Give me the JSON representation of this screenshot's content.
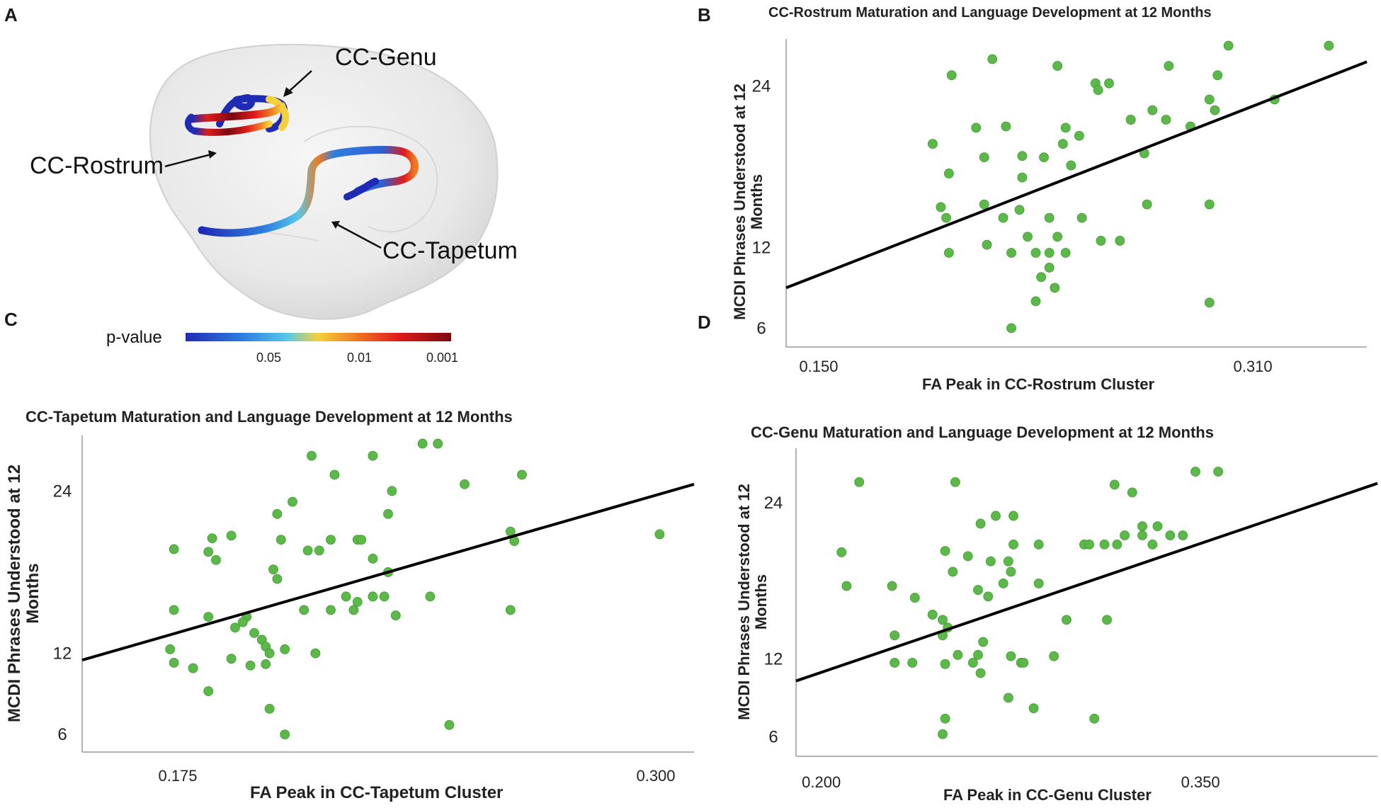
{
  "panel_labels": {
    "a": "A",
    "b": "B",
    "c": "C",
    "d": "D"
  },
  "brain_panel": {
    "labels": {
      "genu": "CC-Genu",
      "rostrum": "CC-Rostrum",
      "tapetum": "CC-Tapetum"
    },
    "colorbar": {
      "title": "p-value",
      "ticks": [
        "0.05",
        "0.01",
        "0.001"
      ],
      "colors": [
        "#1f2bb5",
        "#2f7fe0",
        "#56c7e8",
        "#f5d13a",
        "#f07a22",
        "#e01b1b",
        "#7a0a10"
      ]
    }
  },
  "colors": {
    "point": "#5db84a",
    "point_edge": "#3f9a32",
    "fit_line": "#000000",
    "axis": "#9a9a9a"
  },
  "chart_data": [
    {
      "id": "rostrum",
      "type": "scatter",
      "title": "CC-Rostrum Maturation and Language Development at 12 Months",
      "xlabel": "FA Peak in CC-Rostrum Cluster",
      "ylabel_lines": [
        "MCDI Phrases Understood at 12",
        "Months"
      ],
      "xlim": [
        0.138,
        0.352
      ],
      "ylim": [
        4.6,
        27.5
      ],
      "xticks": [
        0.15,
        0.31
      ],
      "xtick_labels": [
        "0.150",
        "0.310"
      ],
      "yticks": [
        6,
        12,
        24
      ],
      "fit": {
        "x": [
          0.138,
          0.352
        ],
        "y": [
          9.0,
          25.8
        ]
      },
      "points": [
        [
          0.214,
          26.0
        ],
        [
          0.301,
          27.0
        ],
        [
          0.338,
          27.0
        ],
        [
          0.238,
          25.5
        ],
        [
          0.279,
          25.5
        ],
        [
          0.199,
          24.8
        ],
        [
          0.297,
          24.8
        ],
        [
          0.252,
          24.2
        ],
        [
          0.257,
          24.2
        ],
        [
          0.253,
          23.7
        ],
        [
          0.294,
          23.0
        ],
        [
          0.318,
          23.0
        ],
        [
          0.273,
          22.2
        ],
        [
          0.296,
          22.2
        ],
        [
          0.265,
          21.5
        ],
        [
          0.278,
          21.5
        ],
        [
          0.208,
          20.9
        ],
        [
          0.219,
          21.0
        ],
        [
          0.287,
          21.0
        ],
        [
          0.241,
          20.9
        ],
        [
          0.246,
          20.3
        ],
        [
          0.192,
          19.7
        ],
        [
          0.24,
          19.7
        ],
        [
          0.265,
          21.5
        ],
        [
          0.27,
          19.0
        ],
        [
          0.211,
          18.7
        ],
        [
          0.225,
          18.8
        ],
        [
          0.243,
          18.1
        ],
        [
          0.198,
          17.5
        ],
        [
          0.225,
          17.2
        ],
        [
          0.233,
          18.7
        ],
        [
          0.195,
          15.0
        ],
        [
          0.211,
          15.2
        ],
        [
          0.224,
          14.8
        ],
        [
          0.271,
          15.2
        ],
        [
          0.294,
          15.2
        ],
        [
          0.197,
          14.2
        ],
        [
          0.218,
          14.2
        ],
        [
          0.235,
          14.2
        ],
        [
          0.247,
          14.2
        ],
        [
          0.227,
          12.8
        ],
        [
          0.238,
          12.8
        ],
        [
          0.254,
          12.5
        ],
        [
          0.261,
          12.5
        ],
        [
          0.212,
          12.2
        ],
        [
          0.221,
          11.6
        ],
        [
          0.23,
          11.6
        ],
        [
          0.235,
          11.6
        ],
        [
          0.241,
          11.6
        ],
        [
          0.198,
          11.6
        ],
        [
          0.235,
          10.5
        ],
        [
          0.232,
          9.8
        ],
        [
          0.237,
          9.0
        ],
        [
          0.23,
          8.0
        ],
        [
          0.294,
          7.9
        ],
        [
          0.221,
          6.0
        ]
      ]
    },
    {
      "id": "tapetum",
      "type": "scatter",
      "title": "CC-Tapetum Maturation and Language Development at 12 Months",
      "xlabel": "FA Peak in CC-Tapetum Cluster",
      "ylabel_lines": [
        "MCDI Phrases Understood at 12",
        "Months"
      ],
      "xlim": [
        0.15,
        0.31
      ],
      "ylim": [
        4.7,
        28.1
      ],
      "xticks": [
        0.175,
        0.3
      ],
      "xtick_labels": [
        "0.175",
        "0.300"
      ],
      "yticks": [
        6,
        12,
        24
      ],
      "fit": {
        "x": [
          0.15,
          0.31
        ],
        "y": [
          11.5,
          24.5
        ]
      },
      "points": [
        [
          0.239,
          27.5
        ],
        [
          0.243,
          27.5
        ],
        [
          0.21,
          26.6
        ],
        [
          0.226,
          26.6
        ],
        [
          0.216,
          25.2
        ],
        [
          0.265,
          25.2
        ],
        [
          0.25,
          24.5
        ],
        [
          0.231,
          24.0
        ],
        [
          0.205,
          23.2
        ],
        [
          0.201,
          22.3
        ],
        [
          0.23,
          22.3
        ],
        [
          0.262,
          21.0
        ],
        [
          0.184,
          20.5
        ],
        [
          0.189,
          20.7
        ],
        [
          0.202,
          20.4
        ],
        [
          0.215,
          20.4
        ],
        [
          0.222,
          20.4
        ],
        [
          0.223,
          20.4
        ],
        [
          0.263,
          20.3
        ],
        [
          0.209,
          19.6
        ],
        [
          0.212,
          19.6
        ],
        [
          0.174,
          19.7
        ],
        [
          0.183,
          19.5
        ],
        [
          0.185,
          18.9
        ],
        [
          0.226,
          19.0
        ],
        [
          0.2,
          18.2
        ],
        [
          0.23,
          18.0
        ],
        [
          0.201,
          17.5
        ],
        [
          0.219,
          16.2
        ],
        [
          0.226,
          16.2
        ],
        [
          0.229,
          16.2
        ],
        [
          0.222,
          15.8
        ],
        [
          0.241,
          16.2
        ],
        [
          0.208,
          15.2
        ],
        [
          0.215,
          15.2
        ],
        [
          0.221,
          15.2
        ],
        [
          0.174,
          15.2
        ],
        [
          0.232,
          14.8
        ],
        [
          0.262,
          15.2
        ],
        [
          0.183,
          14.7
        ],
        [
          0.193,
          14.7
        ],
        [
          0.19,
          13.9
        ],
        [
          0.192,
          14.3
        ],
        [
          0.195,
          13.5
        ],
        [
          0.197,
          13.0
        ],
        [
          0.198,
          12.5
        ],
        [
          0.199,
          12.0
        ],
        [
          0.203,
          12.3
        ],
        [
          0.211,
          12.0
        ],
        [
          0.189,
          11.6
        ],
        [
          0.194,
          11.1
        ],
        [
          0.173,
          12.3
        ],
        [
          0.174,
          11.3
        ],
        [
          0.179,
          10.9
        ],
        [
          0.198,
          11.2
        ],
        [
          0.183,
          9.2
        ],
        [
          0.199,
          7.9
        ],
        [
          0.203,
          6.0
        ],
        [
          0.246,
          6.7
        ],
        [
          0.301,
          20.8
        ]
      ]
    },
    {
      "id": "genu",
      "type": "scatter",
      "title": "CC-Genu Maturation and Language Development at 12 Months",
      "xlabel": "FA Peak in CC-Genu Cluster",
      "ylabel_lines": [
        "MCDI Phrases Understood at 12",
        "Months"
      ],
      "xlim": [
        0.19,
        0.42
      ],
      "ylim": [
        4.5,
        28.2
      ],
      "xticks": [
        0.2,
        0.35
      ],
      "xtick_labels": [
        "0.200",
        "0.350"
      ],
      "yticks": [
        6,
        12,
        24
      ],
      "fit": {
        "x": [
          0.19,
          0.42
        ],
        "y": [
          10.3,
          25.5
        ]
      },
      "points": [
        [
          0.348,
          26.4
        ],
        [
          0.357,
          26.4
        ],
        [
          0.215,
          25.6
        ],
        [
          0.253,
          25.6
        ],
        [
          0.316,
          25.4
        ],
        [
          0.323,
          24.8
        ],
        [
          0.269,
          23.0
        ],
        [
          0.276,
          23.0
        ],
        [
          0.263,
          22.4
        ],
        [
          0.327,
          22.2
        ],
        [
          0.333,
          22.2
        ],
        [
          0.32,
          21.5
        ],
        [
          0.327,
          21.5
        ],
        [
          0.338,
          21.5
        ],
        [
          0.343,
          21.5
        ],
        [
          0.276,
          20.8
        ],
        [
          0.286,
          20.8
        ],
        [
          0.312,
          20.8
        ],
        [
          0.304,
          20.8
        ],
        [
          0.317,
          20.8
        ],
        [
          0.306,
          20.8
        ],
        [
          0.331,
          20.8
        ],
        [
          0.208,
          20.2
        ],
        [
          0.249,
          20.3
        ],
        [
          0.258,
          19.9
        ],
        [
          0.267,
          19.5
        ],
        [
          0.274,
          19.5
        ],
        [
          0.252,
          18.7
        ],
        [
          0.275,
          18.7
        ],
        [
          0.272,
          17.8
        ],
        [
          0.21,
          17.6
        ],
        [
          0.228,
          17.6
        ],
        [
          0.286,
          17.8
        ],
        [
          0.262,
          17.3
        ],
        [
          0.266,
          16.8
        ],
        [
          0.237,
          16.7
        ],
        [
          0.244,
          15.4
        ],
        [
          0.248,
          15.0
        ],
        [
          0.297,
          15.0
        ],
        [
          0.313,
          15.0
        ],
        [
          0.229,
          13.8
        ],
        [
          0.248,
          13.8
        ],
        [
          0.25,
          14.4
        ],
        [
          0.254,
          12.3
        ],
        [
          0.262,
          12.3
        ],
        [
          0.264,
          13.3
        ],
        [
          0.275,
          12.2
        ],
        [
          0.292,
          12.2
        ],
        [
          0.249,
          11.6
        ],
        [
          0.26,
          11.7
        ],
        [
          0.279,
          11.7
        ],
        [
          0.28,
          11.7
        ],
        [
          0.229,
          11.7
        ],
        [
          0.236,
          11.7
        ],
        [
          0.263,
          10.9
        ],
        [
          0.274,
          9.0
        ],
        [
          0.284,
          8.2
        ],
        [
          0.308,
          7.4
        ],
        [
          0.249,
          7.4
        ],
        [
          0.248,
          6.2
        ]
      ]
    }
  ]
}
